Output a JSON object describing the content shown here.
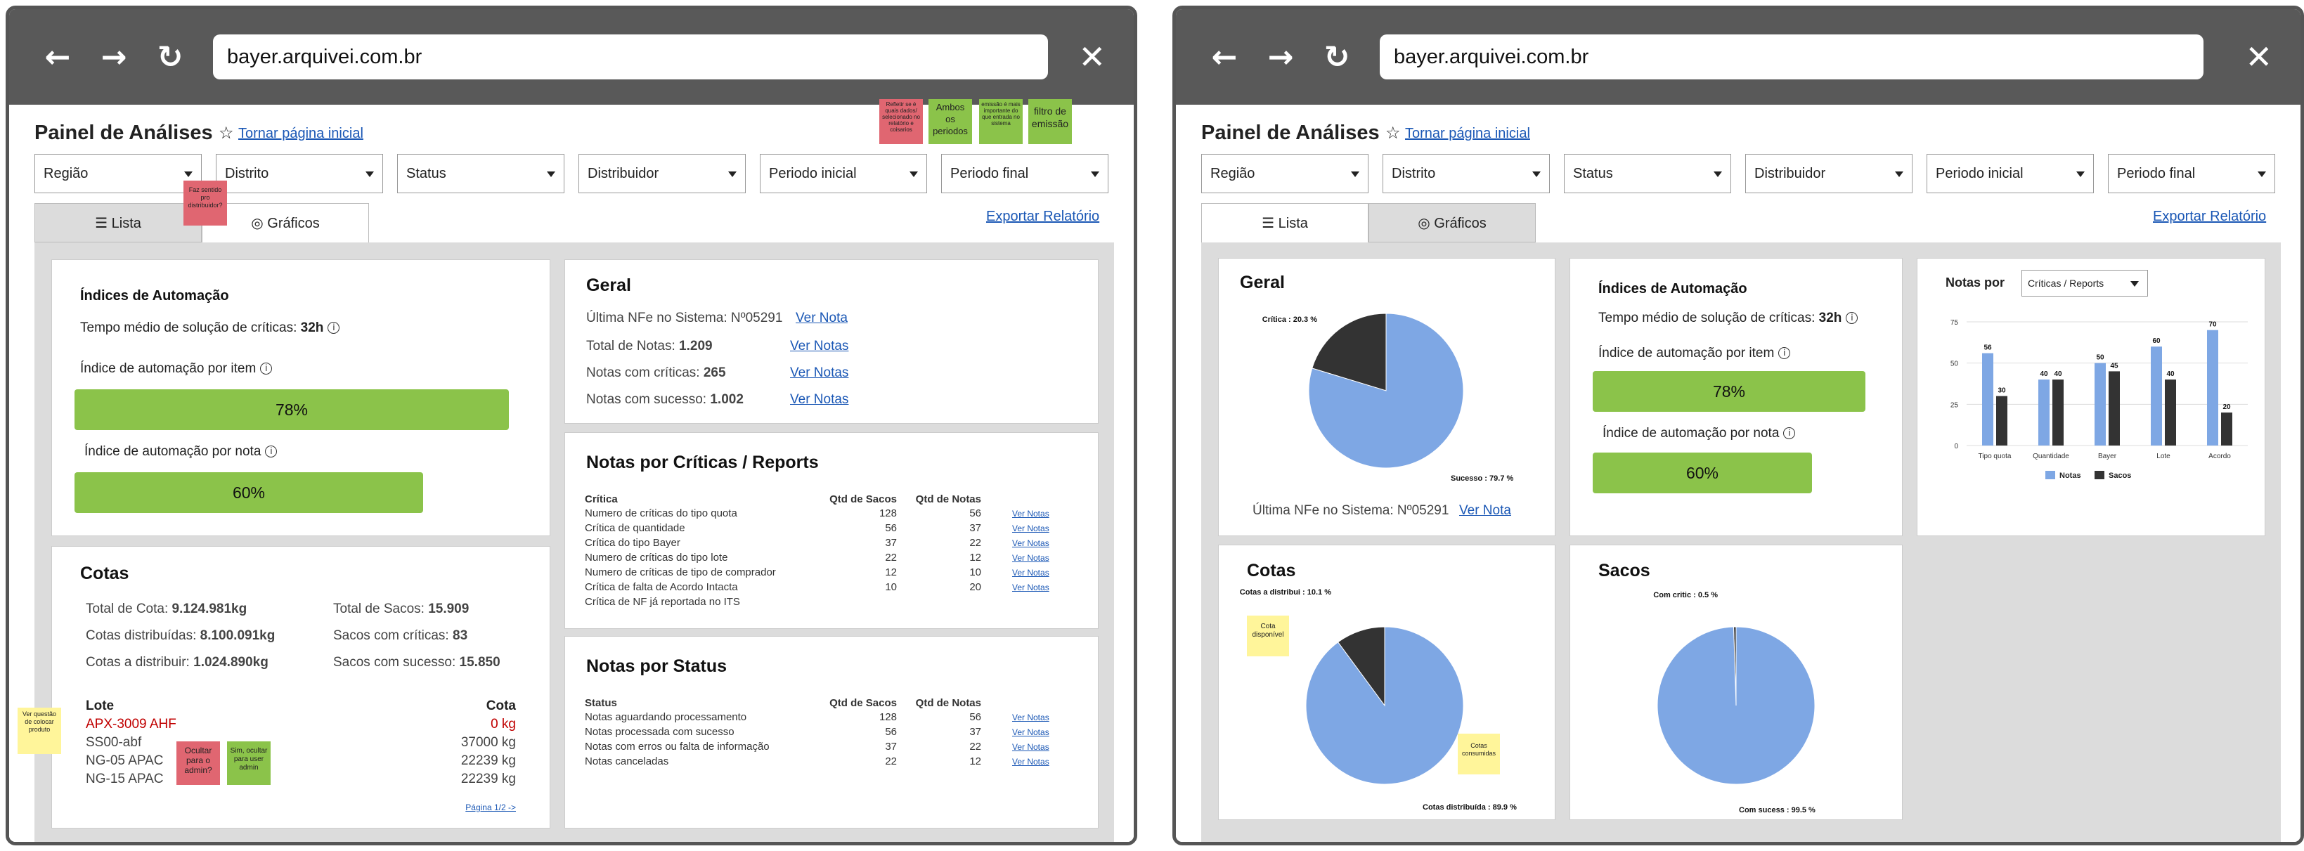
{
  "browser": {
    "url": "bayer.arquivei.com.br",
    "back_icon": "arrow-left-icon",
    "forward_icon": "arrow-right-icon",
    "reload_icon": "reload-icon",
    "close_icon": "close-icon"
  },
  "header": {
    "title": "Painel de Análises",
    "home_link": "Tornar página inicial",
    "export_link": "Exportar Relatório"
  },
  "filters": [
    "Região",
    "Distrito",
    "Status",
    "Distribuidor",
    "Periodo inicial",
    "Periodo final"
  ],
  "tabs": {
    "list": "Lista",
    "charts": "Gráficos"
  },
  "left": {
    "automation": {
      "title": "Índices de Automação",
      "avg_time_label": "Tempo médio de solução de críticas:",
      "avg_time_value": "32h",
      "by_item_label": "Índice de automação por item",
      "by_item_value": "78%",
      "by_item_fraction": 0.78,
      "by_note_label": "Índice de automação por nota",
      "by_note_value": "60%",
      "by_note_fraction": 0.6
    },
    "geral": {
      "title": "Geral",
      "last_nfe_label": "Última NFe no Sistema:",
      "last_nfe_value": "Nº05291",
      "ver_nota": "Ver Nota",
      "total_label": "Total de Notas:",
      "total_value": "1.209",
      "criticas_label": "Notas com críticas:",
      "criticas_value": "265",
      "sucesso_label": "Notas com sucesso:",
      "sucesso_value": "1.002",
      "ver_notas": "Ver Notas"
    },
    "criticas": {
      "title": "Notas por Críticas / Reports",
      "headers": [
        "Crítica",
        "Qtd de Sacos",
        "Qtd de Notas"
      ],
      "rows": [
        {
          "name": "Numero de críticas do tipo quota",
          "sacos": "128",
          "notas": "56",
          "link": "Ver Notas"
        },
        {
          "name": "Crítica de quantidade",
          "sacos": "56",
          "notas": "37",
          "link": "Ver Notas"
        },
        {
          "name": "Crítica do tipo Bayer",
          "sacos": "37",
          "notas": "22",
          "link": "Ver Notas"
        },
        {
          "name": "Numero de críticas do tipo lote",
          "sacos": "22",
          "notas": "12",
          "link": "Ver Notas"
        },
        {
          "name": "Numero de críticas de tipo de comprador",
          "sacos": "12",
          "notas": "10",
          "link": "Ver Notas"
        },
        {
          "name": "Crítica de falta de Acordo Intacta",
          "sacos": "10",
          "notas": "20",
          "link": "Ver Notas"
        },
        {
          "name": "Crítica de NF já reportada no ITS",
          "sacos": "",
          "notas": "",
          "link": ""
        }
      ]
    },
    "status": {
      "title": "Notas por Status",
      "headers": [
        "Status",
        "Qtd de Sacos",
        "Qtd de Notas"
      ],
      "rows": [
        {
          "name": "Notas aguardando processamento",
          "sacos": "128",
          "notas": "56",
          "link": "Ver Notas"
        },
        {
          "name": "Notas processada com sucesso",
          "sacos": "56",
          "notas": "37",
          "link": "Ver Notas"
        },
        {
          "name": "Notas com erros ou falta de informação",
          "sacos": "37",
          "notas": "22",
          "link": "Ver Notas"
        },
        {
          "name": "Notas canceladas",
          "sacos": "22",
          "notas": "12",
          "link": "Ver Notas"
        }
      ]
    },
    "cotas": {
      "title": "Cotas",
      "total_cota_label": "Total de Cota:",
      "total_cota_value": "9.124.981kg",
      "distribuidas_label": "Cotas distribuídas:",
      "distribuidas_value": "8.100.091kg",
      "a_distribuir_label": "Cotas a distribuir:",
      "a_distribuir_value": "1.024.890kg",
      "total_sacos_label": "Total de Sacos:",
      "total_sacos_value": "15.909",
      "sacos_criticas_label": "Sacos com críticas:",
      "sacos_criticas_value": "83",
      "sacos_sucesso_label": "Sacos com sucesso:",
      "sacos_sucesso_value": "15.850",
      "lote_header": "Lote",
      "cota_header": "Cota",
      "lotes": [
        {
          "lote": "APX-3009 AHF",
          "cota": "0 kg",
          "alert": true
        },
        {
          "lote": "SS00-abf",
          "cota": "37000 kg",
          "alert": false
        },
        {
          "lote": "NG-05 APAC",
          "cota": "22239 kg",
          "alert": false
        },
        {
          "lote": "NG-15 APAC",
          "cota": "22239 kg",
          "alert": false
        }
      ],
      "pagination": "Página 1/2 ->"
    },
    "stickies": {
      "s1": "Refletir se é quais dados/ selecionado no relatório e coisarios",
      "s2": "Ambos os periodos",
      "s3": "emissão é mais importante do que entrada no sistema",
      "s4": "filtro de emissão",
      "s5": "Faz sentido pro distribuidor?",
      "s6": "Ver questão de colocar produto",
      "s7": "Ocultar para o admin?",
      "s8": "Sim, ocultar para user admin"
    }
  },
  "right": {
    "geral": {
      "title": "Geral",
      "last_nfe_label": "Última NFe no Sistema:",
      "last_nfe_value": "Nº05291",
      "ver_nota": "Ver Nota"
    },
    "automation": {
      "title": "Índices de Automação",
      "avg_time_label": "Tempo médio de solução de críticas:",
      "avg_time_value": "32h",
      "by_item_label": "Índice de automação por item",
      "by_item_value": "78%",
      "by_item_fraction": 0.78,
      "by_note_label": "Índice de automação por nota",
      "by_note_value": "60%",
      "by_note_fraction": 0.6
    },
    "notas_por": {
      "title": "Notas por",
      "select": "Críticas / Reports"
    },
    "cotas": {
      "title": "Cotas",
      "sticky_disp": "Cota disponível",
      "sticky_cons": "Cotas consumidas"
    },
    "sacos": {
      "title": "Sacos"
    }
  },
  "chart_data": [
    {
      "type": "pie",
      "title": "Geral",
      "slices": [
        {
          "label": "Sucesso",
          "value": 79.7,
          "text": "Sucesso : 79.7 %",
          "color": "#7ea7e4"
        },
        {
          "label": "Crítica",
          "value": 20.3,
          "text": "Crítica : 20.3 %",
          "color": "#333333"
        }
      ]
    },
    {
      "type": "bar",
      "title": "Notas por",
      "categories": [
        "Tipo quota",
        "Quantidade",
        "Bayer",
        "Lote",
        "Acordo"
      ],
      "series": [
        {
          "name": "Notas",
          "values": [
            56,
            40,
            50,
            60,
            70
          ],
          "color": "#7ea7e4"
        },
        {
          "name": "Sacos",
          "values": [
            30,
            40,
            45,
            40,
            20
          ],
          "color": "#333333"
        }
      ],
      "ylim": [
        0,
        75
      ],
      "yticks": [
        0,
        25,
        50,
        75
      ],
      "grid": true,
      "legend": "bottom"
    },
    {
      "type": "pie",
      "title": "Cotas",
      "slices": [
        {
          "label": "Cotas distribuída",
          "value": 89.9,
          "text": "Cotas distribuída : 89.9 %",
          "color": "#7ea7e4"
        },
        {
          "label": "Cotas a distribui",
          "value": 10.1,
          "text": "Cotas a distribui : 10.1 %",
          "color": "#333333"
        }
      ]
    },
    {
      "type": "pie",
      "title": "Sacos",
      "slices": [
        {
          "label": "Com sucess",
          "value": 99.5,
          "text": "Com sucess : 99.5 %",
          "color": "#7ea7e4"
        },
        {
          "label": "Com critic",
          "value": 0.5,
          "text": "Com critic : 0.5 %",
          "color": "#333333"
        }
      ]
    }
  ]
}
